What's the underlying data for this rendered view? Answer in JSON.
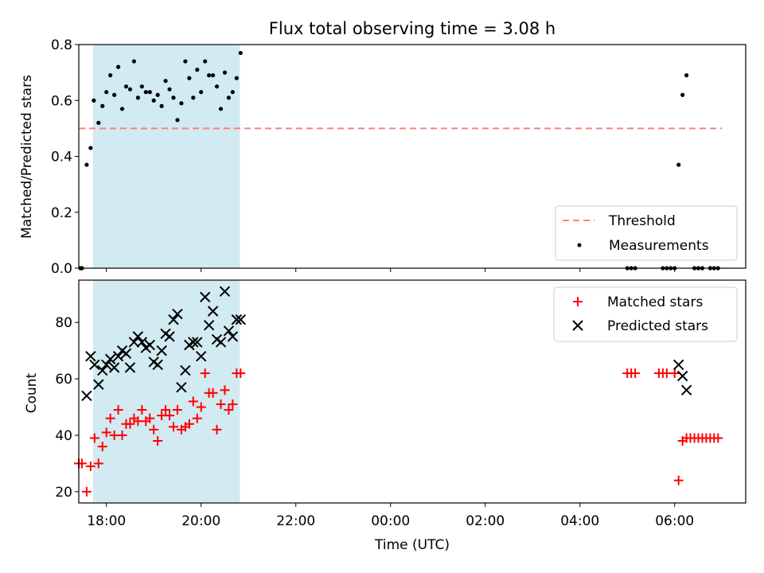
{
  "title": "Flux total observing time = 3.08 h",
  "colors": {
    "shade": "#add8e6",
    "threshold": "#ff7f7f",
    "measurement": "#000000",
    "matched": "#ff0000",
    "predicted": "#000000"
  },
  "chart_data": [
    {
      "type": "scatter",
      "ylabel": "Matched/Predicted stars",
      "ylim": [
        0,
        0.8
      ],
      "yticks": [
        0.0,
        0.2,
        0.4,
        0.6,
        0.8
      ],
      "ytick_labels": [
        "0.0",
        "0.2",
        "0.4",
        "0.6",
        "0.8"
      ],
      "xaxis_type": "time",
      "xlim": [
        "17:25",
        "07:30"
      ],
      "xticks": [
        "18:00",
        "20:00",
        "22:00",
        "00:00",
        "02:00",
        "04:00",
        "06:00"
      ],
      "shaded_region": [
        "17:43",
        "20:49"
      ],
      "legend": {
        "position": "lower right",
        "entries": [
          "Threshold",
          "Measurements"
        ]
      },
      "threshold": {
        "name": "Threshold",
        "value": 0.5,
        "x_range": [
          "17:25",
          "07:00"
        ]
      },
      "series": [
        {
          "name": "Measurements",
          "marker": "dot",
          "x": [
            "17:27",
            "17:29",
            "17:35",
            "17:40",
            "17:44",
            "17:50",
            "17:55",
            "18:00",
            "18:05",
            "18:10",
            "18:15",
            "18:20",
            "18:25",
            "18:30",
            "18:35",
            "18:40",
            "18:45",
            "18:50",
            "18:55",
            "19:00",
            "19:05",
            "19:10",
            "19:15",
            "19:20",
            "19:25",
            "19:30",
            "19:35",
            "19:40",
            "19:45",
            "19:50",
            "19:55",
            "20:00",
            "20:05",
            "20:10",
            "20:15",
            "20:20",
            "20:25",
            "20:30",
            "20:35",
            "20:40",
            "20:45",
            "20:50",
            "05:00",
            "05:05",
            "05:10",
            "05:45",
            "05:50",
            "05:55",
            "06:00",
            "06:05",
            "06:10",
            "06:15",
            "06:25",
            "06:30",
            "06:35",
            "06:45",
            "06:50",
            "06:55"
          ],
          "y": [
            0,
            0,
            0.37,
            0.43,
            0.6,
            0.52,
            0.58,
            0.63,
            0.69,
            0.62,
            0.72,
            0.57,
            0.65,
            0.64,
            0.74,
            0.61,
            0.65,
            0.63,
            0.63,
            0.6,
            0.62,
            0.58,
            0.67,
            0.64,
            0.61,
            0.53,
            0.59,
            0.74,
            0.68,
            0.61,
            0.71,
            0.63,
            0.74,
            0.69,
            0.69,
            0.65,
            0.57,
            0.7,
            0.61,
            0.63,
            0.68,
            0.77,
            0,
            0,
            0,
            0,
            0,
            0,
            0,
            0.37,
            0.62,
            0.69,
            0,
            0,
            0,
            0,
            0,
            0
          ]
        }
      ]
    },
    {
      "type": "scatter",
      "xlabel": "Time (UTC)",
      "ylabel": "Count",
      "ylim": [
        16,
        95
      ],
      "yticks": [
        20,
        40,
        60,
        80
      ],
      "ytick_labels": [
        "20",
        "40",
        "60",
        "80"
      ],
      "xaxis_type": "time",
      "xlim": [
        "17:25",
        "07:30"
      ],
      "xticks": [
        "18:00",
        "20:00",
        "22:00",
        "00:00",
        "02:00",
        "04:00",
        "06:00"
      ],
      "shaded_region": [
        "17:43",
        "20:49"
      ],
      "legend": {
        "position": "upper right",
        "entries": [
          "Matched stars",
          "Predicted stars"
        ]
      },
      "series": [
        {
          "name": "Matched stars",
          "marker": "plus",
          "x": [
            "17:25",
            "17:29",
            "17:35",
            "17:40",
            "17:45",
            "17:50",
            "17:55",
            "18:00",
            "18:05",
            "18:10",
            "18:15",
            "18:20",
            "18:25",
            "18:30",
            "18:35",
            "18:40",
            "18:45",
            "18:50",
            "18:55",
            "19:00",
            "19:05",
            "19:10",
            "19:15",
            "19:20",
            "19:25",
            "19:30",
            "19:35",
            "19:40",
            "19:45",
            "19:50",
            "19:55",
            "20:00",
            "20:05",
            "20:10",
            "20:15",
            "20:20",
            "20:25",
            "20:30",
            "20:35",
            "20:40",
            "20:45",
            "20:50",
            "05:00",
            "05:05",
            "05:10",
            "05:40",
            "05:45",
            "05:50",
            "06:00",
            "06:05",
            "06:10",
            "06:15",
            "06:20",
            "06:25",
            "06:30",
            "06:35",
            "06:40",
            "06:45",
            "06:50",
            "06:55"
          ],
          "y": [
            30,
            30,
            20,
            29,
            39,
            30,
            36,
            41,
            46,
            40,
            49,
            40,
            44,
            44,
            46,
            45,
            49,
            45,
            46,
            42,
            38,
            47,
            49,
            47,
            43,
            49,
            42,
            43,
            44,
            52,
            46,
            50,
            62,
            55,
            55,
            42,
            51,
            56,
            49,
            51,
            62,
            62,
            62,
            62,
            62,
            62,
            62,
            62,
            62,
            24,
            38,
            39,
            39,
            39,
            39,
            39,
            39,
            39,
            39,
            39
          ]
        },
        {
          "name": "Predicted stars",
          "marker": "x",
          "x": [
            "17:35",
            "17:40",
            "17:45",
            "17:50",
            "17:55",
            "18:00",
            "18:05",
            "18:10",
            "18:15",
            "18:20",
            "18:25",
            "18:30",
            "18:35",
            "18:40",
            "18:45",
            "18:50",
            "18:55",
            "19:00",
            "19:05",
            "19:10",
            "19:15",
            "19:20",
            "19:25",
            "19:30",
            "19:35",
            "19:40",
            "19:45",
            "19:50",
            "19:55",
            "20:00",
            "20:05",
            "20:10",
            "20:15",
            "20:20",
            "20:25",
            "20:30",
            "20:35",
            "20:40",
            "20:45",
            "20:50",
            "06:05",
            "06:10",
            "06:15"
          ],
          "y": [
            54,
            68,
            65,
            58,
            63,
            65,
            67,
            64,
            68,
            70,
            69,
            64,
            73,
            75,
            73,
            71,
            72,
            66,
            65,
            70,
            76,
            75,
            81,
            83,
            57,
            63,
            72,
            73,
            73,
            68,
            89,
            79,
            84,
            74,
            73,
            91,
            77,
            75,
            81,
            81,
            65,
            61,
            56
          ]
        }
      ]
    }
  ]
}
